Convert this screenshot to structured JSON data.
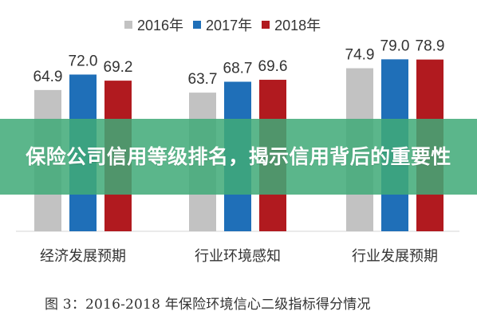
{
  "overlay": {
    "title": "保险公司信用等级排名，揭示信用背后的重要性"
  },
  "caption": {
    "text": "图 3：2016-2018 年保险环境信心二级指标得分情况"
  },
  "colors": {
    "s2016": "#c2c2c2",
    "s2017": "#1f6fb8",
    "s2018": "#b11a1f",
    "axis": "#d6d6d6",
    "text": "#333333"
  },
  "chart_data": {
    "type": "bar",
    "categories": [
      "经济发展预期",
      "行业环境感知",
      "行业发展预期"
    ],
    "series": [
      {
        "name": "2016年",
        "values": [
          64.9,
          63.7,
          74.9
        ]
      },
      {
        "name": "2017年",
        "values": [
          72.0,
          68.7,
          79.0
        ]
      },
      {
        "name": "2018年",
        "values": [
          69.2,
          69.6,
          78.9
        ]
      }
    ],
    "data_labels": [
      [
        "64.9",
        "72.0",
        "69.2"
      ],
      [
        "63.7",
        "68.7",
        "69.6"
      ],
      [
        "74.9",
        "79.0",
        "78.9"
      ]
    ],
    "ylim": [
      0,
      85
    ],
    "grid": false,
    "legend_position": "top"
  }
}
